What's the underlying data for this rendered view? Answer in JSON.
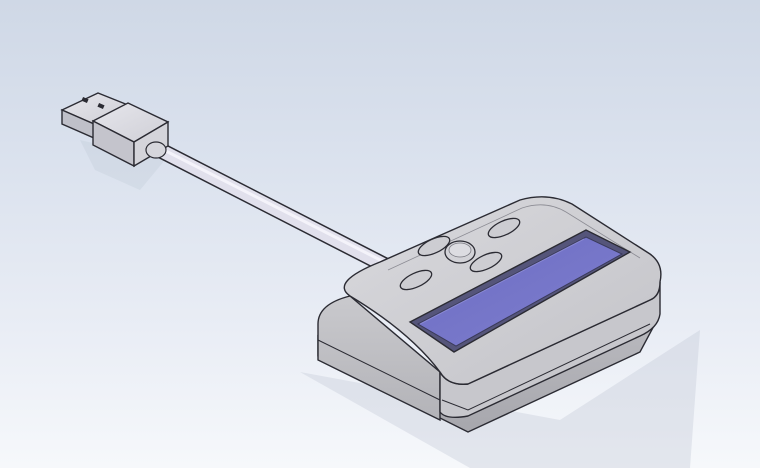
{
  "colors": {
    "background_top": "#cfd8e6",
    "background_bottom": "#f6f8fb",
    "body_gray": "#cfcfd3",
    "edge": "#2b2b33",
    "lcd_blue": "#7272c6",
    "lcd_frame": "#4a4a6a",
    "cable": "#dedde9"
  },
  "scene": {
    "objects": [
      "usb-a-plug",
      "cable",
      "display-device",
      "lcd-screen",
      "button"
    ]
  }
}
